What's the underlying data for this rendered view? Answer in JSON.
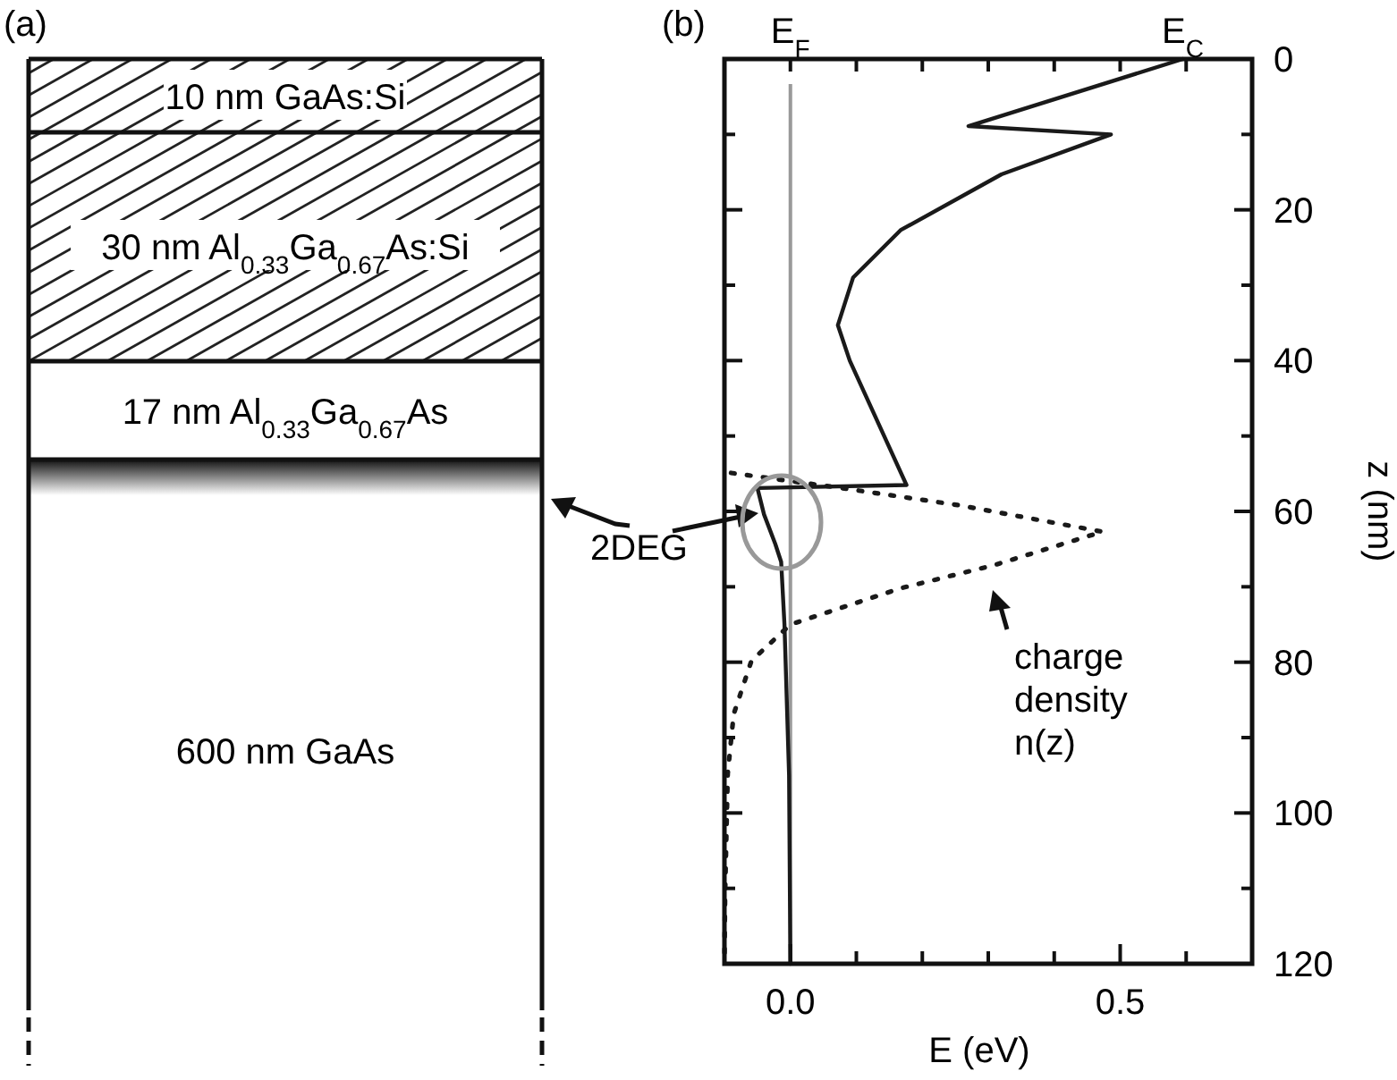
{
  "chart_data": [
    {
      "type": "other",
      "title": "(a)",
      "annotations": [
        "10 nm GaAs:Si",
        "30 nm Al$_{0.33}$Ga$_{0.67}$As:Si",
        "17 nm Al$_{0.33}$Ga$_{0.67}$As",
        "600 nm GaAs"
      ]
    },
    {
      "type": "line",
      "title": "(b)",
      "xlabel": "E (eV)",
      "ylabel": "z (nm)",
      "xlim": [
        -0.1,
        0.7
      ],
      "xticks": [
        {
          "value": 0,
          "label": "0.0"
        },
        {
          "value": 0.1,
          "label": null
        },
        {
          "value": 0.2,
          "label": null
        },
        {
          "value": 0.3,
          "label": null
        },
        {
          "value": 0.4,
          "label": null
        },
        {
          "value": 0.5,
          "label": "0.5"
        },
        {
          "value": 0.6,
          "label": null
        }
      ],
      "ylim": [
        120,
        0
      ],
      "yticks": [
        0,
        {
          "value": 10,
          "label": null
        },
        20,
        {
          "value": 30,
          "label": null
        },
        40,
        {
          "value": 50,
          "label": null
        },
        60,
        {
          "value": 70,
          "label": null
        },
        80,
        {
          "value": 90,
          "label": null
        },
        100,
        {
          "value": 110,
          "label": null
        },
        120
      ],
      "grid": false,
      "ref_lines": [
        {
          "axis": "x",
          "value": 0,
          "label": "E$_{F}$",
          "color": "#999999"
        }
      ],
      "series": [
        {
          "name": "E$_{C}$",
          "color": "#1a1a1a",
          "line_style": "solid",
          "x": [
            0.595,
            0.27,
            0.486,
            0.32,
            0.167,
            0.095,
            0.072,
            0.09,
            0.176,
            -0.05,
            -0.04,
            -0.023,
            -0.014,
            -0.009,
            -0.002,
            0
          ],
          "values": [
            0,
            8.9,
            10,
            15.3,
            22.7,
            29,
            35.3,
            40,
            56.5,
            56.9,
            60.4,
            64.3,
            66.7,
            75,
            95,
            120
          ]
        },
        {
          "color": "#1a1a1a",
          "line_style": "dotted",
          "x": [
            -0.09,
            0.077,
            0.257,
            0.473,
            0.31,
            0.167,
            0,
            -0.059,
            -0.086,
            -0.095,
            -0.099,
            -0.1
          ],
          "values": [
            54.9,
            56.9,
            59.2,
            62.7,
            67.1,
            70.2,
            75,
            79.8,
            86.9,
            94.8,
            110.7,
            120
          ]
        }
      ],
      "annotations": [
        "2DEG",
        "charge density n(z)"
      ]
    }
  ]
}
